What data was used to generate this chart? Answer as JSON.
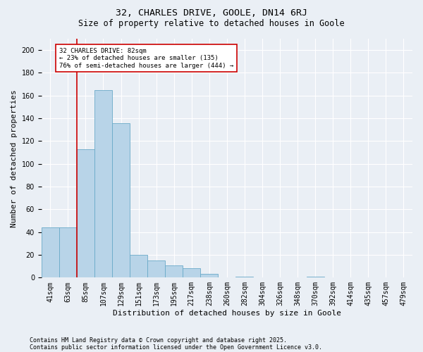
{
  "title1": "32, CHARLES DRIVE, GOOLE, DN14 6RJ",
  "title2": "Size of property relative to detached houses in Goole",
  "xlabel": "Distribution of detached houses by size in Goole",
  "ylabel": "Number of detached properties",
  "categories": [
    "41sqm",
    "63sqm",
    "85sqm",
    "107sqm",
    "129sqm",
    "151sqm",
    "173sqm",
    "195sqm",
    "217sqm",
    "238sqm",
    "260sqm",
    "282sqm",
    "304sqm",
    "326sqm",
    "348sqm",
    "370sqm",
    "392sqm",
    "414sqm",
    "435sqm",
    "457sqm",
    "479sqm"
  ],
  "values": [
    44,
    44,
    113,
    165,
    136,
    20,
    15,
    11,
    8,
    3,
    0,
    1,
    0,
    0,
    0,
    1,
    0,
    0,
    0,
    0,
    0
  ],
  "bar_color": "#b8d4e8",
  "bar_edge_color": "#6aaac8",
  "property_line_x": 1.5,
  "annotation_text": "32 CHARLES DRIVE: 82sqm\n← 23% of detached houses are smaller (135)\n76% of semi-detached houses are larger (444) →",
  "annotation_box_color": "#ffffff",
  "annotation_box_edge": "#cc0000",
  "red_line_color": "#cc0000",
  "ylim": [
    0,
    210
  ],
  "footnote1": "Contains HM Land Registry data © Crown copyright and database right 2025.",
  "footnote2": "Contains public sector information licensed under the Open Government Licence v3.0.",
  "background_color": "#eaeff5",
  "plot_background": "#eaeff5",
  "title_fontsize": 9.5,
  "subtitle_fontsize": 8.5,
  "tick_fontsize": 7,
  "ylabel_fontsize": 8,
  "xlabel_fontsize": 8,
  "footnote_fontsize": 6,
  "annotation_fontsize": 6.5
}
